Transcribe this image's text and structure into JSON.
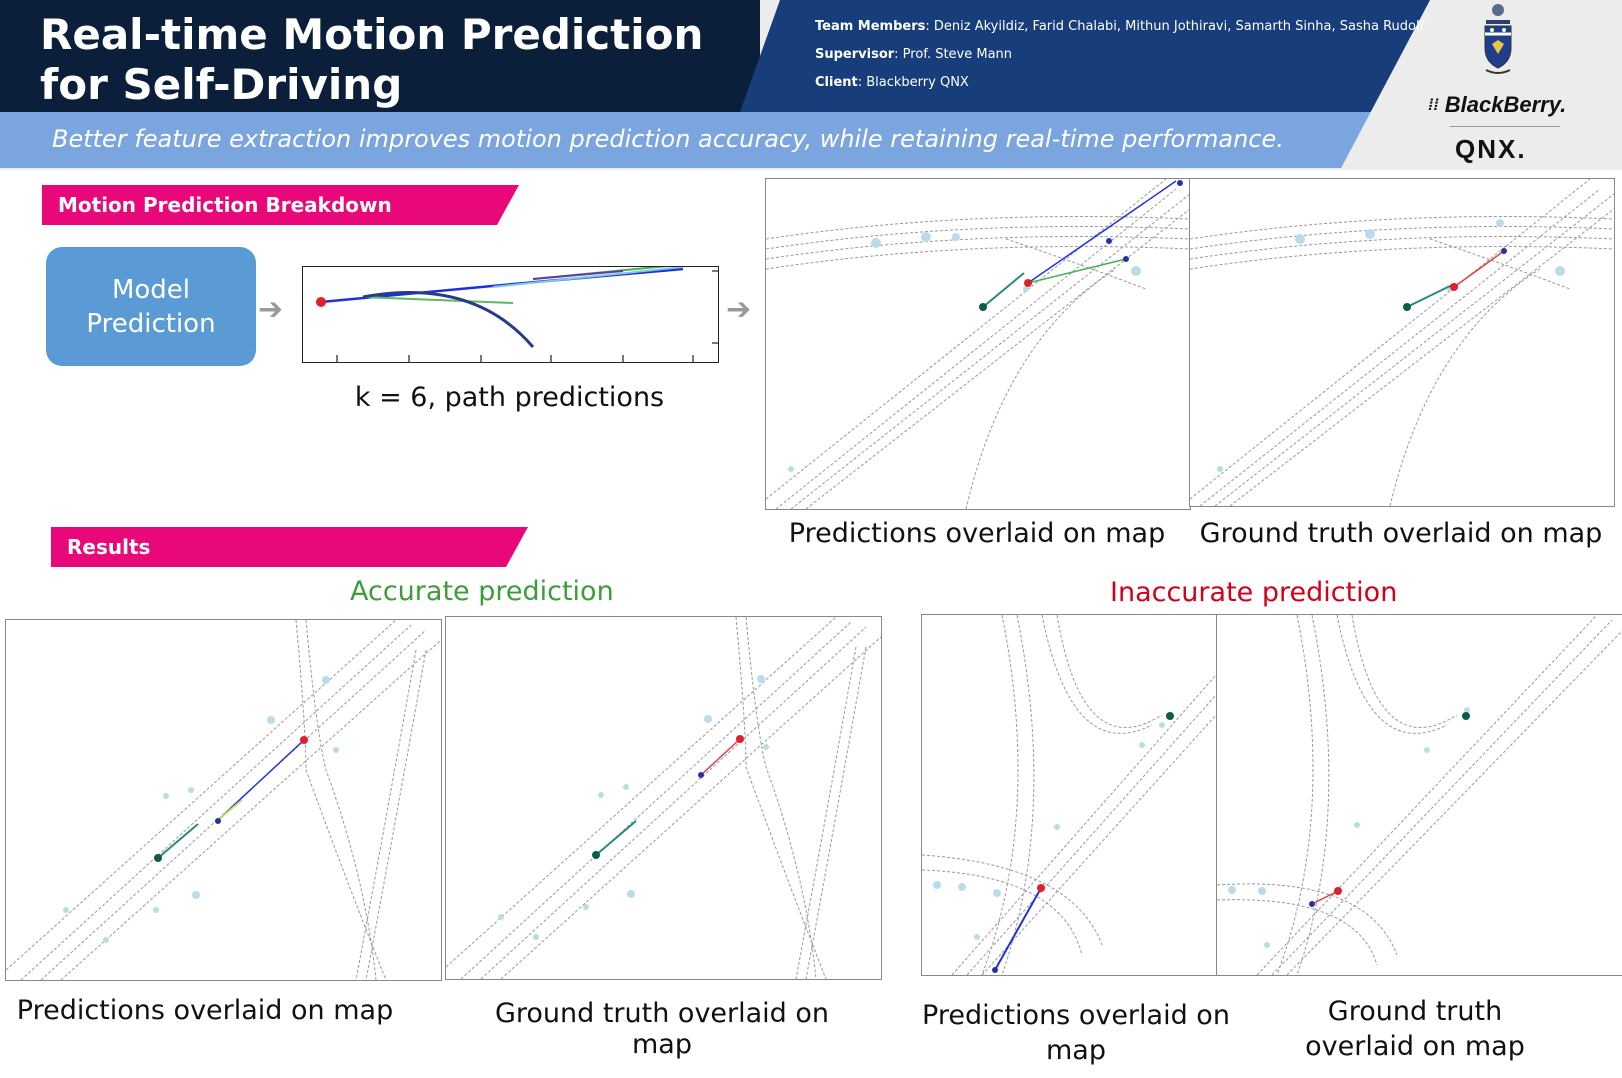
{
  "header": {
    "title": "Real-time Motion Prediction for Self-Driving",
    "team_label": "Team Members",
    "team_value": ": Deniz Akyildiz, Farid Chalabi, Mithun Jothiravi, Samarth Sinha, Sasha Rudolf",
    "supervisor_label": "Supervisor",
    "supervisor_value": ": Prof. Steve Mann",
    "client_label": "Client",
    "client_value": ": Blackberry QNX",
    "tagline": "Better feature extraction improves motion prediction accuracy, while retaining real-time performance.",
    "logo_blackberry": "BlackBerry.",
    "logo_qnx": "QNX."
  },
  "breakdown": {
    "banner": "Motion Prediction Breakdown",
    "model_box": "Model Prediction",
    "plot_caption": "k = 6, path predictions",
    "map_pred_caption": "Predictions overlaid on map",
    "map_gt_caption": "Ground truth overlaid on map"
  },
  "results": {
    "banner": "Results",
    "accurate_label": "Accurate prediction",
    "inaccurate_label": "Inaccurate prediction",
    "acc_pred_caption": "Predictions overlaid on map",
    "acc_gt_caption": "Ground truth overlaid on map",
    "inacc_pred_caption": "Predictions overlaid on map",
    "inacc_gt_caption": "Ground truth overlaid on map"
  },
  "colors": {
    "header_dark": "#0b1f3a",
    "header_mid": "#173d7a",
    "header_light": "#7ba5de",
    "banner_pink": "#e9087a",
    "model_blue": "#5b9bd5",
    "accurate_green": "#3e9c3a",
    "inaccurate_red": "#d0021b"
  }
}
